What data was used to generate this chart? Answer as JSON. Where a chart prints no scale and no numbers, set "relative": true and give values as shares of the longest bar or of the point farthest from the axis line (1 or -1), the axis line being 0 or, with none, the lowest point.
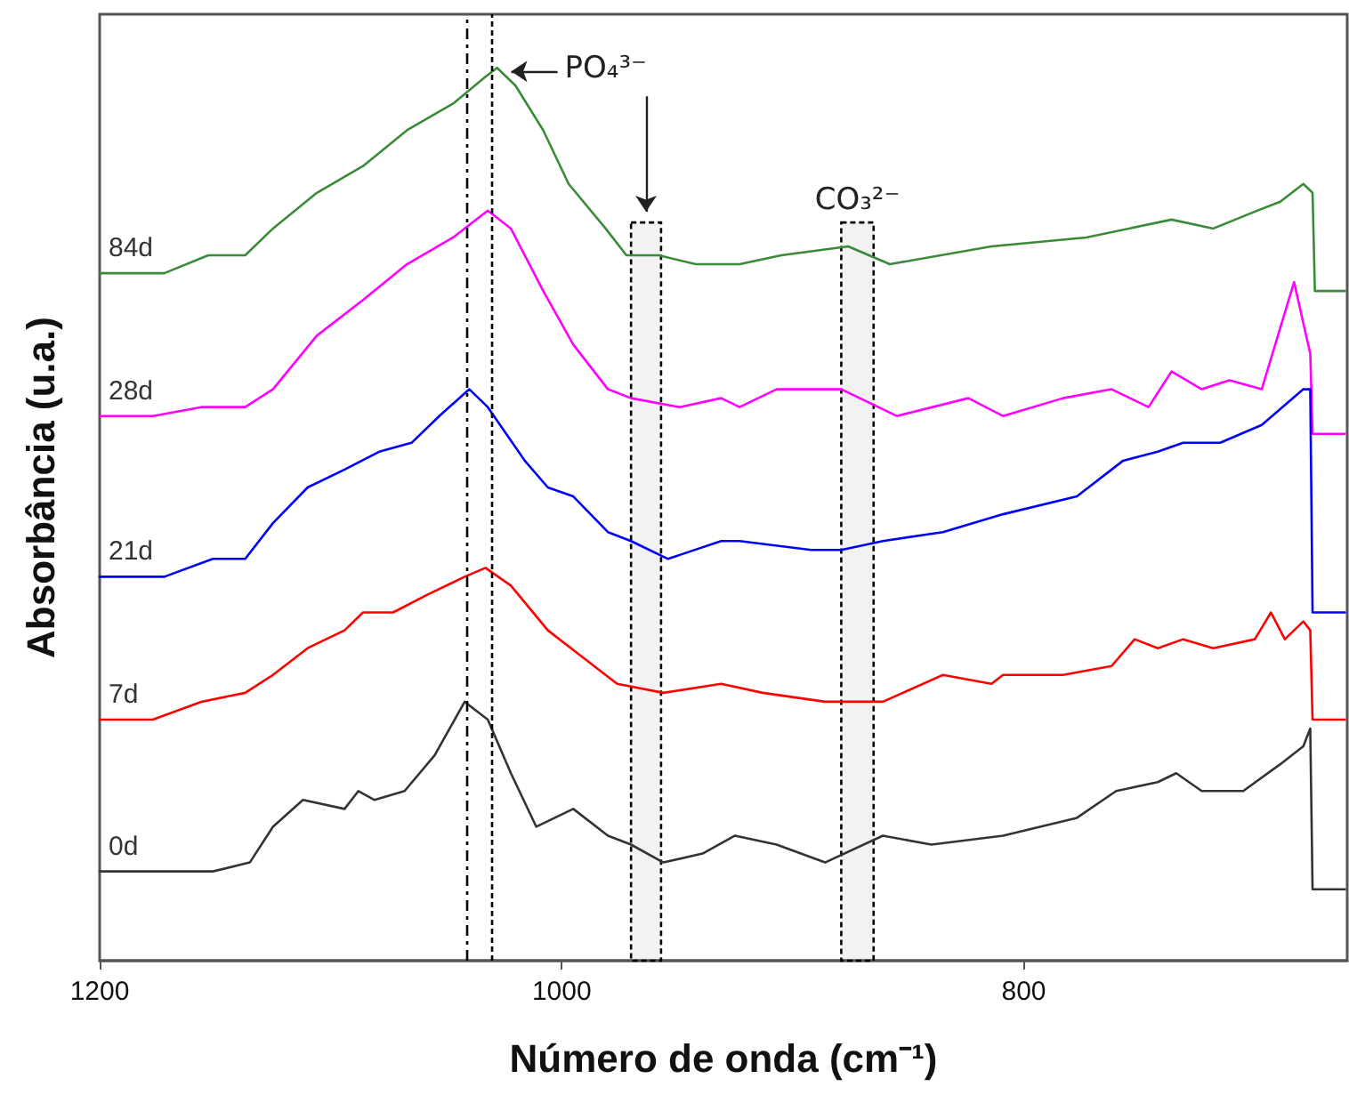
{
  "chart_data": {
    "type": "line",
    "xlabel": "Número de onda (cm⁻¹)",
    "ylabel": "Absorbância (u.a.)",
    "relative": true,
    "xlim": [
      1200,
      660
    ],
    "xticks": [
      1200,
      1000,
      800
    ],
    "marker": "none",
    "line_style": "solid",
    "series": [
      {
        "name": "84d",
        "color": "#3a8a3a",
        "x": [
          1200,
          1172,
          1153,
          1137,
          1125,
          1106,
          1086,
          1067,
          1047,
          1033,
          1028,
          1020,
          1008,
          997,
          981,
          972,
          958,
          942,
          923,
          905,
          876,
          858,
          814,
          773,
          736,
          718,
          699,
          689,
          679,
          675,
          674,
          661
        ],
        "values": [
          0.77,
          0.77,
          0.79,
          0.79,
          0.82,
          0.86,
          0.89,
          0.93,
          0.96,
          0.99,
          1.0,
          0.98,
          0.93,
          0.87,
          0.82,
          0.79,
          0.79,
          0.78,
          0.78,
          0.79,
          0.8,
          0.78,
          0.8,
          0.81,
          0.83,
          0.82,
          0.84,
          0.85,
          0.87,
          0.86,
          0.75,
          0.75
        ]
      },
      {
        "name": "28d",
        "color": "#ff00ff",
        "x": [
          1200,
          1177,
          1156,
          1137,
          1125,
          1106,
          1086,
          1067,
          1047,
          1032,
          1022,
          1008,
          995,
          980,
          970,
          949,
          931,
          923,
          907,
          879,
          855,
          824,
          809,
          783,
          762,
          746,
          736,
          723,
          711,
          697,
          683,
          676,
          675,
          661
        ],
        "values": [
          0.61,
          0.61,
          0.62,
          0.62,
          0.64,
          0.7,
          0.74,
          0.78,
          0.81,
          0.84,
          0.82,
          0.75,
          0.69,
          0.64,
          0.63,
          0.62,
          0.63,
          0.62,
          0.64,
          0.64,
          0.61,
          0.63,
          0.61,
          0.63,
          0.64,
          0.62,
          0.66,
          0.64,
          0.65,
          0.64,
          0.76,
          0.68,
          0.59,
          0.59
        ]
      },
      {
        "name": "21d",
        "color": "#0000ff",
        "x": [
          1200,
          1172,
          1151,
          1137,
          1125,
          1110,
          1094,
          1079,
          1065,
          1053,
          1040,
          1032,
          1016,
          1006,
          995,
          980,
          970,
          954,
          931,
          923,
          892,
          879,
          861,
          835,
          809,
          777,
          757,
          742,
          731,
          715,
          697,
          679,
          676,
          675,
          661
        ],
        "values": [
          0.43,
          0.43,
          0.45,
          0.45,
          0.49,
          0.53,
          0.55,
          0.57,
          0.58,
          0.61,
          0.64,
          0.62,
          0.56,
          0.53,
          0.52,
          0.48,
          0.47,
          0.45,
          0.47,
          0.47,
          0.46,
          0.46,
          0.47,
          0.48,
          0.5,
          0.52,
          0.56,
          0.57,
          0.58,
          0.58,
          0.6,
          0.64,
          0.64,
          0.39,
          0.39
        ]
      },
      {
        "name": "7d",
        "color": "#ff0000",
        "x": [
          1200,
          1177,
          1156,
          1137,
          1125,
          1110,
          1094,
          1086,
          1073,
          1058,
          1042,
          1033,
          1022,
          1006,
          991,
          976,
          956,
          931,
          913,
          886,
          861,
          835,
          814,
          809,
          783,
          762,
          752,
          742,
          731,
          718,
          700,
          693,
          687,
          679,
          676,
          675,
          661
        ],
        "values": [
          0.27,
          0.27,
          0.29,
          0.3,
          0.32,
          0.35,
          0.37,
          0.39,
          0.39,
          0.41,
          0.43,
          0.44,
          0.42,
          0.37,
          0.34,
          0.31,
          0.3,
          0.31,
          0.3,
          0.29,
          0.29,
          0.32,
          0.31,
          0.32,
          0.32,
          0.33,
          0.36,
          0.35,
          0.36,
          0.35,
          0.36,
          0.39,
          0.36,
          0.38,
          0.37,
          0.27,
          0.27
        ]
      },
      {
        "name": "0d",
        "color": "#333333",
        "x": [
          1200,
          1151,
          1135,
          1125,
          1112,
          1094,
          1088,
          1081,
          1068,
          1055,
          1042,
          1032,
          1022,
          1011,
          995,
          980,
          970,
          956,
          939,
          925,
          907,
          886,
          861,
          840,
          809,
          777,
          760,
          742,
          734,
          723,
          705,
          689,
          679,
          676,
          675,
          661
        ],
        "values": [
          0.1,
          0.1,
          0.11,
          0.15,
          0.18,
          0.17,
          0.19,
          0.18,
          0.19,
          0.23,
          0.29,
          0.27,
          0.21,
          0.15,
          0.17,
          0.14,
          0.13,
          0.11,
          0.12,
          0.14,
          0.13,
          0.11,
          0.14,
          0.13,
          0.14,
          0.16,
          0.19,
          0.2,
          0.21,
          0.19,
          0.19,
          0.22,
          0.24,
          0.26,
          0.08,
          0.08
        ]
      }
    ],
    "ref_lines": [
      {
        "axis": "x",
        "value": 1041,
        "line_style": "dashed",
        "color": "#000000"
      },
      {
        "axis": "x",
        "value": 1030,
        "line_style": "dotted",
        "color": "#000000"
      }
    ],
    "bands": [
      {
        "axis": "x",
        "from": 970,
        "to": 957,
        "color": "#000000"
      },
      {
        "axis": "x",
        "from": 879,
        "to": 865,
        "color": "#000000"
      }
    ],
    "annotations": [
      {
        "text": "PO₄³⁻",
        "x": 1028,
        "y": 1.0
      },
      "CO₃²⁻"
    ]
  }
}
